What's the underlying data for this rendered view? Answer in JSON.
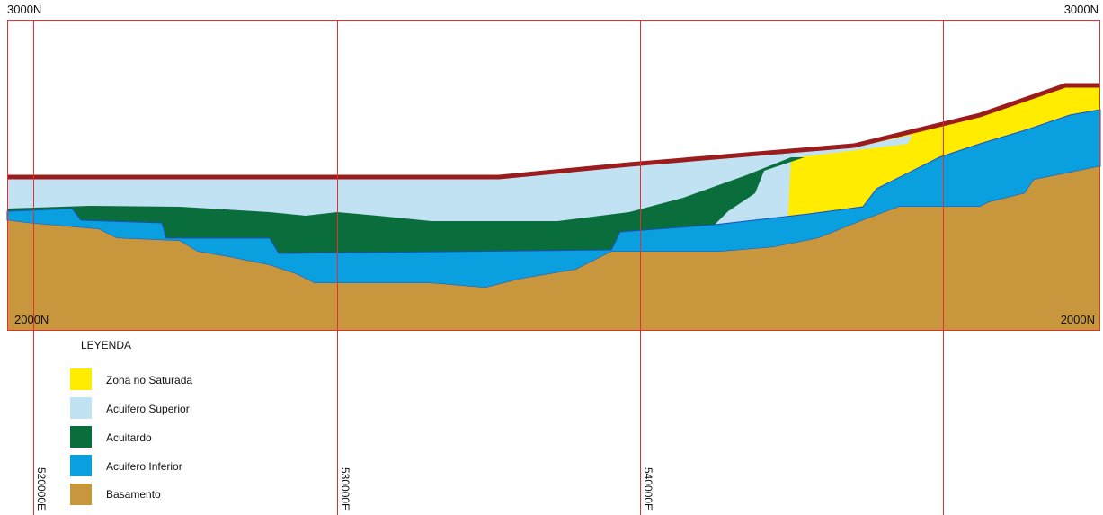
{
  "grid_labels": {
    "north_top_left": "3000N",
    "north_top_right": "3000N",
    "north_bottom_left": "2000N",
    "north_bottom_right": "2000N",
    "eastings": [
      "520000E",
      "530000E",
      "540000E"
    ]
  },
  "legend": {
    "title": "LEYENDA",
    "items": [
      "Zona no Saturada",
      "Acuifero Superior",
      "Acuitardo",
      "Acuifero Inferior",
      "Basamento"
    ]
  }
}
